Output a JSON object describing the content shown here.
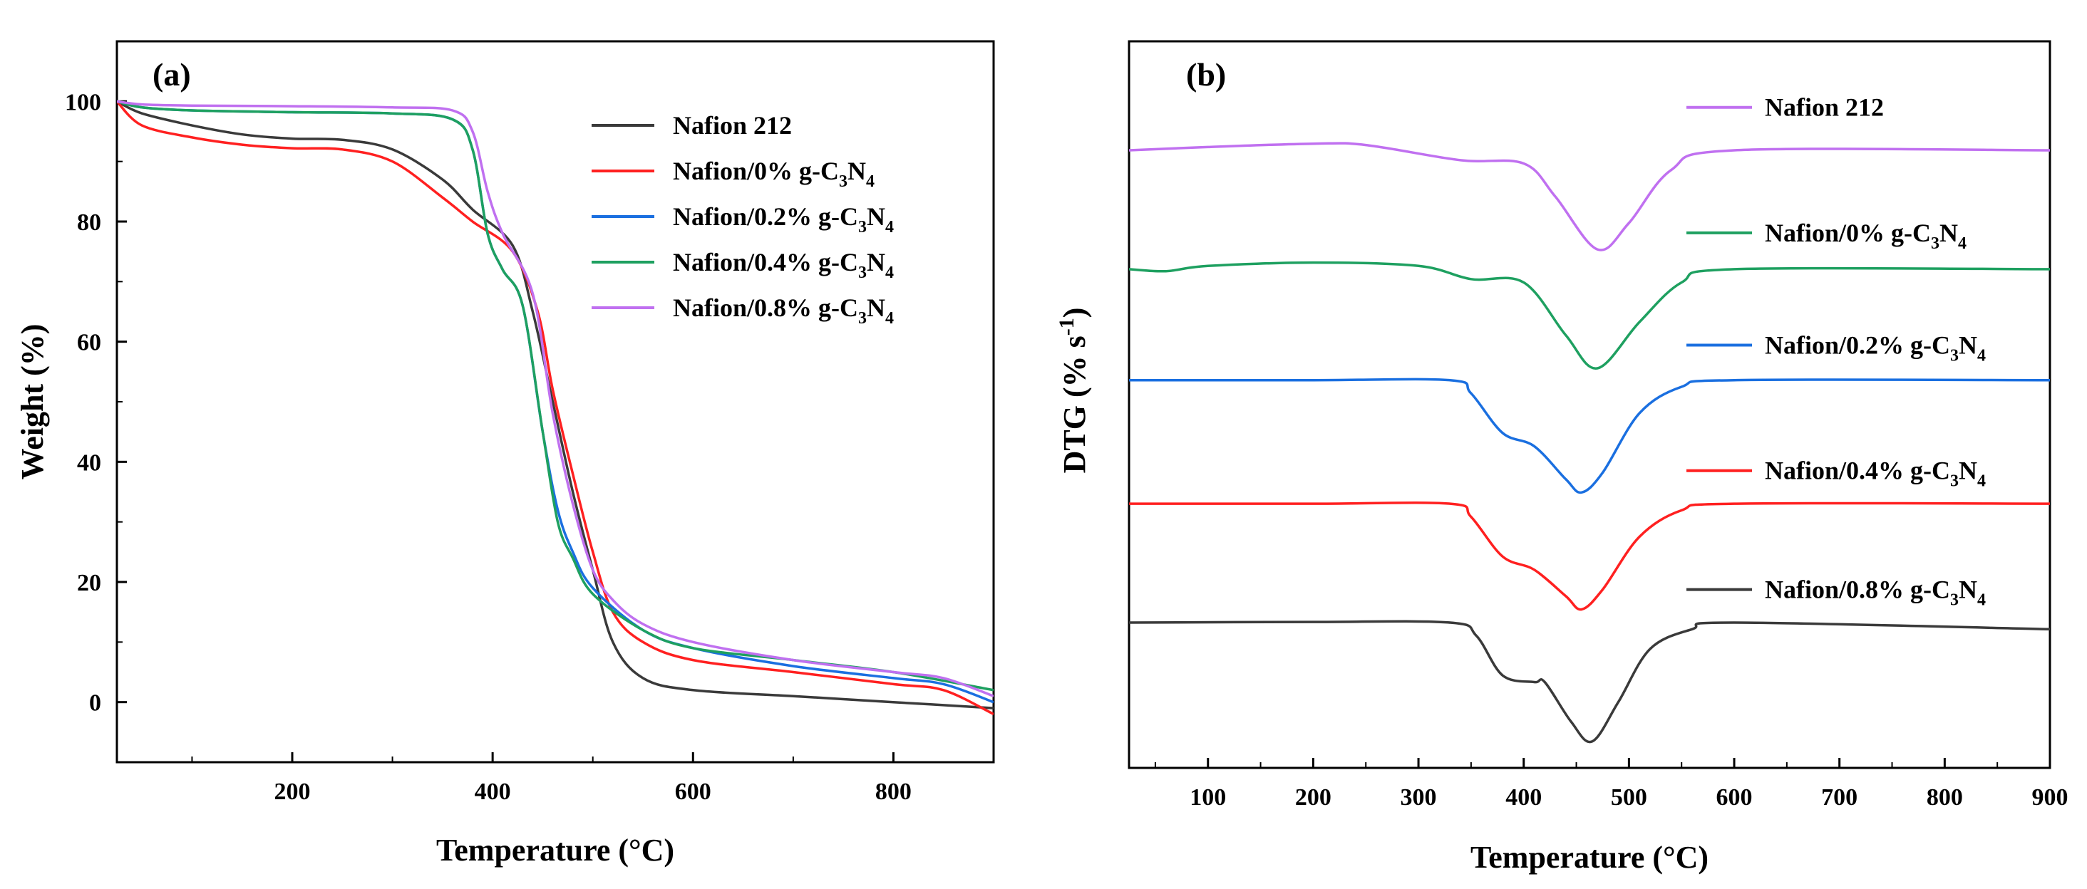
{
  "chart_data": [
    {
      "panel_label": "(a)",
      "type": "line",
      "xlabel": "Temperature (°C)",
      "ylabel": "Weight (%)",
      "xlim": [
        25,
        900
      ],
      "ylim": [
        -10,
        110
      ],
      "xticks": [
        200,
        400,
        600,
        800
      ],
      "yticks": [
        0,
        20,
        40,
        60,
        80,
        100
      ],
      "grid": false,
      "legend_position": "top-right",
      "series": [
        {
          "name": "Nafion 212",
          "sub": "",
          "color": "#3a3a3a",
          "points": [
            [
              25,
              100
            ],
            [
              50,
              98
            ],
            [
              100,
              96
            ],
            [
              150,
              94.5
            ],
            [
              200,
              93.8
            ],
            [
              250,
              93.6
            ],
            [
              300,
              92
            ],
            [
              350,
              87
            ],
            [
              380,
              82
            ],
            [
              420,
              76
            ],
            [
              440,
              65
            ],
            [
              460,
              50
            ],
            [
              480,
              35
            ],
            [
              500,
              22
            ],
            [
              520,
              10
            ],
            [
              550,
              4
            ],
            [
              600,
              2
            ],
            [
              700,
              1
            ],
            [
              800,
              0
            ],
            [
              900,
              -1
            ]
          ]
        },
        {
          "name": "Nafion/0% g-C",
          "sub": "3",
          "name2": "N",
          "sub2": "4",
          "color": "#ff2020",
          "points": [
            [
              25,
              100
            ],
            [
              50,
              96
            ],
            [
              100,
              94
            ],
            [
              150,
              92.8
            ],
            [
              200,
              92.2
            ],
            [
              250,
              92
            ],
            [
              300,
              90
            ],
            [
              350,
              84
            ],
            [
              380,
              80
            ],
            [
              420,
              75
            ],
            [
              445,
              65
            ],
            [
              460,
              52
            ],
            [
              480,
              38
            ],
            [
              500,
              25
            ],
            [
              520,
              15
            ],
            [
              550,
              10
            ],
            [
              600,
              7
            ],
            [
              700,
              5
            ],
            [
              800,
              3
            ],
            [
              850,
              2
            ],
            [
              900,
              -2
            ]
          ]
        },
        {
          "name": "Nafion/0.2% g-C",
          "sub": "3",
          "name2": "N",
          "sub2": "4",
          "color": "#1a6fe0",
          "points": [
            [
              25,
              100
            ],
            [
              50,
              99
            ],
            [
              100,
              98.5
            ],
            [
              200,
              98.2
            ],
            [
              300,
              98
            ],
            [
              360,
              97
            ],
            [
              380,
              92
            ],
            [
              395,
              78
            ],
            [
              410,
              72
            ],
            [
              430,
              66
            ],
            [
              450,
              45
            ],
            [
              465,
              32
            ],
            [
              480,
              25
            ],
            [
              500,
              19
            ],
            [
              550,
              12
            ],
            [
              600,
              9
            ],
            [
              700,
              6
            ],
            [
              800,
              4
            ],
            [
              850,
              3
            ],
            [
              900,
              0
            ]
          ]
        },
        {
          "name": "Nafion/0.4% g-C",
          "sub": "3",
          "name2": "N",
          "sub2": "4",
          "color": "#1ea060",
          "points": [
            [
              25,
              100
            ],
            [
              50,
              99
            ],
            [
              100,
              98.5
            ],
            [
              200,
              98.2
            ],
            [
              300,
              98
            ],
            [
              360,
              97
            ],
            [
              380,
              92
            ],
            [
              395,
              78
            ],
            [
              410,
              72
            ],
            [
              430,
              66
            ],
            [
              450,
              45
            ],
            [
              465,
              30
            ],
            [
              480,
              24
            ],
            [
              500,
              18
            ],
            [
              550,
              12
            ],
            [
              600,
              9
            ],
            [
              700,
              7
            ],
            [
              800,
              5
            ],
            [
              900,
              2
            ]
          ]
        },
        {
          "name": "Nafion/0.8% g-C",
          "sub": "3",
          "name2": "N",
          "sub2": "4",
          "color": "#c070f0",
          "points": [
            [
              25,
              100
            ],
            [
              50,
              99.5
            ],
            [
              100,
              99.3
            ],
            [
              200,
              99.2
            ],
            [
              300,
              99
            ],
            [
              360,
              98.5
            ],
            [
              380,
              95
            ],
            [
              395,
              85
            ],
            [
              410,
              78
            ],
            [
              440,
              68
            ],
            [
              460,
              48
            ],
            [
              480,
              33
            ],
            [
              500,
              22
            ],
            [
              520,
              17
            ],
            [
              550,
              13
            ],
            [
              600,
              10
            ],
            [
              700,
              7
            ],
            [
              800,
              5
            ],
            [
              850,
              4
            ],
            [
              900,
              1
            ]
          ]
        }
      ]
    },
    {
      "panel_label": "(b)",
      "type": "line",
      "xlabel": "Temperature (°C)",
      "ylabel": "DTG (% s",
      "ylabel_sup": "-1",
      "ylabel_end": ")",
      "xlim": [
        25,
        900
      ],
      "xticks": [
        100,
        200,
        300,
        400,
        500,
        600,
        700,
        800,
        900
      ],
      "grid": false,
      "legend_position": "right",
      "series": [
        {
          "name": "Nafion 212",
          "sub": "",
          "color": "#c070f0",
          "offset": 93.5,
          "legend_y": 100,
          "points": [
            [
              25,
              0
            ],
            [
              100,
              0.5
            ],
            [
              200,
              1
            ],
            [
              250,
              0.8
            ],
            [
              340,
              -1.5
            ],
            [
              400,
              -2
            ],
            [
              430,
              -7
            ],
            [
              470,
              -15
            ],
            [
              500,
              -11
            ],
            [
              540,
              -3
            ],
            [
              600,
              0
            ],
            [
              900,
              0
            ]
          ]
        },
        {
          "name": "Nafion/0% g-C",
          "sub": "3",
          "name2": "N",
          "sub2": "4",
          "color": "#1ea060",
          "offset": 75.5,
          "legend_y": 81,
          "points": [
            [
              25,
              0
            ],
            [
              60,
              -0.3
            ],
            [
              100,
              0.5
            ],
            [
              200,
              1
            ],
            [
              300,
              0.5
            ],
            [
              350,
              -1.5
            ],
            [
              400,
              -2
            ],
            [
              440,
              -10
            ],
            [
              470,
              -15
            ],
            [
              510,
              -8
            ],
            [
              550,
              -2
            ],
            [
              600,
              0
            ],
            [
              900,
              0
            ]
          ]
        },
        {
          "name": "Nafion/0.2% g-C",
          "sub": "3",
          "name2": "N",
          "sub2": "4",
          "color": "#1a6fe0",
          "offset": 58.7,
          "legend_y": 64,
          "points": [
            [
              25,
              0
            ],
            [
              200,
              0
            ],
            [
              330,
              0
            ],
            [
              350,
              -2
            ],
            [
              380,
              -8
            ],
            [
              410,
              -10
            ],
            [
              440,
              -15
            ],
            [
              455,
              -17
            ],
            [
              475,
              -14
            ],
            [
              510,
              -5
            ],
            [
              550,
              -1
            ],
            [
              600,
              0
            ],
            [
              900,
              0
            ]
          ]
        },
        {
          "name": "Nafion/0.4% g-C",
          "sub": "3",
          "name2": "N",
          "sub2": "4",
          "color": "#ff2020",
          "offset": 40,
          "legend_y": 45,
          "points": [
            [
              25,
              0
            ],
            [
              200,
              0
            ],
            [
              330,
              0
            ],
            [
              350,
              -2
            ],
            [
              380,
              -8
            ],
            [
              410,
              -10
            ],
            [
              440,
              -14
            ],
            [
              455,
              -16
            ],
            [
              475,
              -13
            ],
            [
              510,
              -5
            ],
            [
              550,
              -1
            ],
            [
              600,
              0
            ],
            [
              900,
              0
            ]
          ]
        },
        {
          "name": "Nafion/0.8% g-C",
          "sub": "3",
          "name2": "N",
          "sub2": "4",
          "color": "#3a3a3a",
          "offset": 22,
          "legend_y": 27,
          "points": [
            [
              25,
              0
            ],
            [
              200,
              0.1
            ],
            [
              330,
              0
            ],
            [
              355,
              -2
            ],
            [
              380,
              -8
            ],
            [
              410,
              -9
            ],
            [
              420,
              -9
            ],
            [
              445,
              -15
            ],
            [
              465,
              -18
            ],
            [
              490,
              -12
            ],
            [
              520,
              -4
            ],
            [
              560,
              -1
            ],
            [
              600,
              0
            ],
            [
              900,
              -1
            ]
          ]
        }
      ]
    }
  ]
}
